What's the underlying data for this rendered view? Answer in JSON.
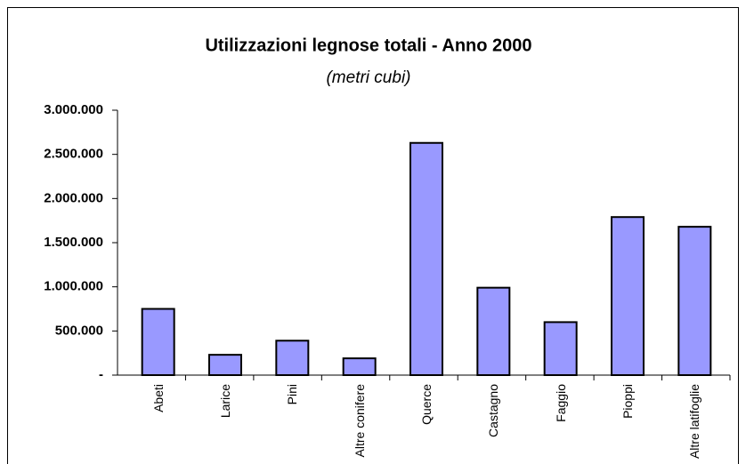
{
  "chart_data": {
    "type": "bar",
    "title": "Utilizzazioni legnose totali - Anno 2000",
    "subtitle": "(metri cubi)",
    "categories": [
      "Abeti",
      "Larice",
      "Pini",
      "Altre conifere",
      "Querce",
      "Castagno",
      "Faggio",
      "Pioppi",
      "Altre latifoglie"
    ],
    "values": [
      750000,
      230000,
      390000,
      190000,
      2630000,
      990000,
      600000,
      1790000,
      1680000
    ],
    "color": "#9999ff",
    "ylim": [
      0,
      3000000
    ],
    "yticks": [
      {
        "value": 0,
        "label": "-"
      },
      {
        "value": 500000,
        "label": "500.000"
      },
      {
        "value": 1000000,
        "label": "1.000.000"
      },
      {
        "value": 1500000,
        "label": "1.500.000"
      },
      {
        "value": 2000000,
        "label": "2.000.000"
      },
      {
        "value": 2500000,
        "label": "2.500.000"
      },
      {
        "value": 3000000,
        "label": "3.000.000"
      }
    ],
    "grid": false
  }
}
